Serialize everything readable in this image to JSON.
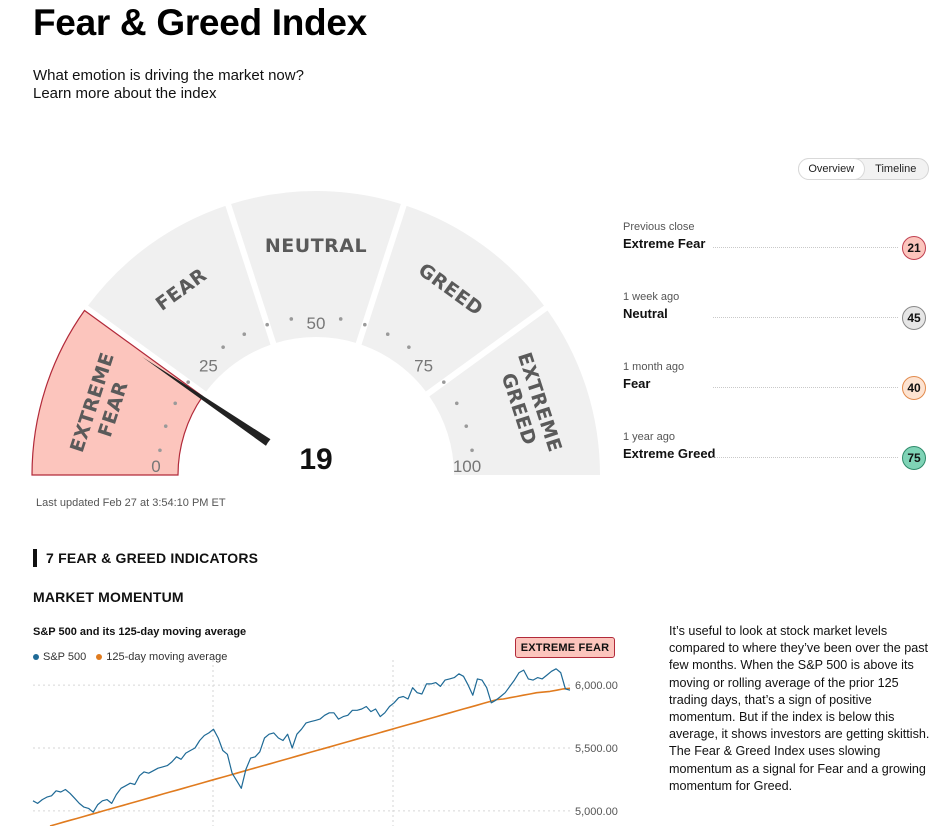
{
  "header": {
    "title": "Fear & Greed Index",
    "subtitle": "What emotion is driving the market now?",
    "learn_more": "Learn more about the index"
  },
  "view_toggle": {
    "overview": "Overview",
    "timeline": "Timeline",
    "active": "Overview"
  },
  "gauge": {
    "value": 19,
    "value_label": "19",
    "segments": [
      {
        "key": "extreme_fear",
        "lines": [
          "EXTREME",
          "FEAR"
        ],
        "color": "#fcc5bd",
        "active": true
      },
      {
        "key": "fear",
        "lines": [
          "FEAR"
        ],
        "color": "#f0f0f0"
      },
      {
        "key": "neutral",
        "lines": [
          "NEUTRAL"
        ],
        "color": "#f0f0f0"
      },
      {
        "key": "greed",
        "lines": [
          "GREED"
        ],
        "color": "#f0f0f0"
      },
      {
        "key": "extreme_greed",
        "lines": [
          "EXTREME",
          "GREED"
        ],
        "color": "#f0f0f0"
      }
    ],
    "ticks": [
      "0",
      "25",
      "50",
      "75",
      "100"
    ],
    "needle_color": "#222222",
    "active_border": "#b22a3a"
  },
  "last_updated": "Last updated Feb 27 at 3:54:10 PM ET",
  "history": [
    {
      "when": "Previous close",
      "label": "Extreme Fear",
      "value": "21",
      "color": "#fcc5bd",
      "border": "#c04050"
    },
    {
      "when": "1 week ago",
      "label": "Neutral",
      "value": "45",
      "color": "#e6e6e6",
      "border": "#888888"
    },
    {
      "when": "1 month ago",
      "label": "Fear",
      "value": "40",
      "color": "#fde3d1",
      "border": "#e28a4c"
    },
    {
      "when": "1 year ago",
      "label": "Extreme Greed",
      "value": "75",
      "color": "#7fd3b6",
      "border": "#2e8a6a"
    }
  ],
  "indicators": {
    "heading": "7 FEAR & GREED INDICATORS",
    "section": "MARKET MOMENTUM"
  },
  "chart_data": {
    "type": "line",
    "title": "S&P 500 and its 125-day moving average",
    "rating_badge": "EXTREME FEAR",
    "y_ticks": [
      "6,000.00",
      "5,500.00",
      "5,000.00"
    ],
    "ylim": [
      4880,
      6200
    ],
    "legend_position": "top-left",
    "series": [
      {
        "name": "S&P 500",
        "color": "#1f6a96",
        "values": [
          5080,
          5060,
          5090,
          5110,
          5120,
          5160,
          5150,
          5170,
          5140,
          5100,
          5060,
          5030,
          5020,
          4990,
          5050,
          5080,
          5090,
          5060,
          5130,
          5180,
          5200,
          5220,
          5210,
          5280,
          5310,
          5300,
          5320,
          5340,
          5350,
          5360,
          5390,
          5430,
          5410,
          5460,
          5480,
          5500,
          5560,
          5600,
          5620,
          5650,
          5580,
          5480,
          5450,
          5300,
          5240,
          5180,
          5330,
          5420,
          5430,
          5470,
          5580,
          5610,
          5620,
          5580,
          5560,
          5610,
          5500,
          5610,
          5650,
          5700,
          5710,
          5720,
          5730,
          5760,
          5780,
          5780,
          5730,
          5750,
          5760,
          5800,
          5800,
          5810,
          5830,
          5790,
          5810,
          5750,
          5780,
          5830,
          5860,
          5900,
          5910,
          5890,
          5980,
          5940,
          5930,
          6010,
          6010,
          6020,
          5990,
          6040,
          6050,
          6060,
          6090,
          6070,
          6000,
          5920,
          6050,
          6040,
          5980,
          5860,
          5880,
          5910,
          5940,
          5990,
          6040,
          6100,
          6120,
          6050,
          6040,
          6060,
          6050,
          6080,
          6110,
          6130,
          6100,
          5970,
          5960
        ]
      },
      {
        "name": "125-day moving average",
        "color": "#e07b1f",
        "values": [
          4880,
          4895,
          4910,
          4925,
          4940,
          4955,
          4970,
          4985,
          5000,
          5015,
          5030,
          5045,
          5060,
          5075,
          5090,
          5105,
          5120,
          5135,
          5150,
          5165,
          5180,
          5195,
          5210,
          5225,
          5240,
          5255,
          5270,
          5285,
          5300,
          5315,
          5330,
          5345,
          5360,
          5375,
          5390,
          5405,
          5420,
          5435,
          5450,
          5465,
          5480,
          5495,
          5510,
          5525,
          5540,
          5555,
          5570,
          5585,
          5600,
          5615,
          5630,
          5645,
          5660,
          5675,
          5690,
          5705,
          5720,
          5735,
          5750,
          5765,
          5780,
          5795,
          5810,
          5825,
          5840,
          5855,
          5870,
          5885,
          5890,
          5900,
          5910,
          5920,
          5930,
          5940,
          5945,
          5950,
          5960,
          5970,
          5975
        ]
      }
    ]
  },
  "description": "It’s useful to look at stock market levels compared to where they’ve been over the past few months. When the S&P 500 is above its moving or rolling average of the prior 125 trading days, that’s a sign of positive momentum. But if the index is below this average, it shows investors are getting skittish. The Fear & Greed Index uses slowing momentum as a signal for Fear and a growing momentum for Greed."
}
